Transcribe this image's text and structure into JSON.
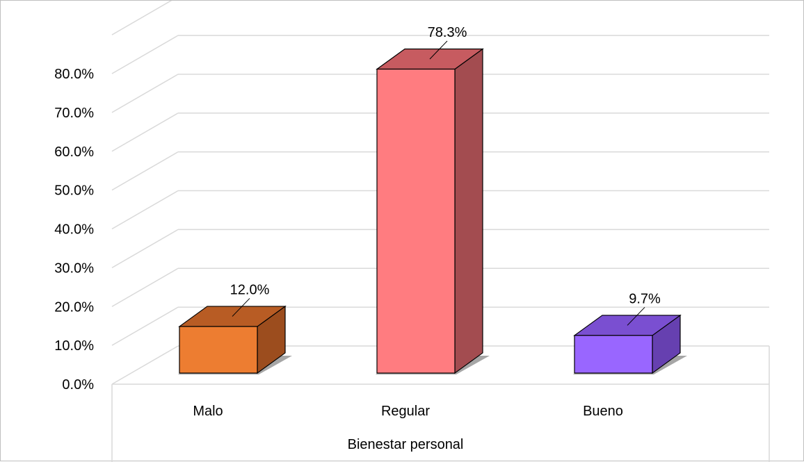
{
  "chart_data": {
    "type": "bar",
    "style": "3d-column",
    "categories": [
      "Malo",
      "Regular",
      "Bueno"
    ],
    "values": [
      12.0,
      78.3,
      9.7
    ],
    "data_labels": [
      "12.0%",
      "78.3%",
      "9.7%"
    ],
    "xlabel": "Bienestar personal",
    "ylabel": "",
    "ylim": [
      0,
      80
    ],
    "y_ticks": [
      "0.0%",
      "10.0%",
      "20.0%",
      "30.0%",
      "40.0%",
      "50.0%",
      "60.0%",
      "70.0%",
      "80.0%"
    ],
    "grid": true,
    "legend": "none",
    "colors": {
      "Malo": {
        "front": "#ed7d31",
        "top": "#b85c24",
        "side": "#9c4d1e"
      },
      "Regular": {
        "front": "#ff7c80",
        "top": "#c75b60",
        "side": "#a34c50"
      },
      "Bueno": {
        "front": "#9966ff",
        "top": "#7a4fd1",
        "side": "#6640b0"
      },
      "grid": "#d9d9d9"
    }
  }
}
